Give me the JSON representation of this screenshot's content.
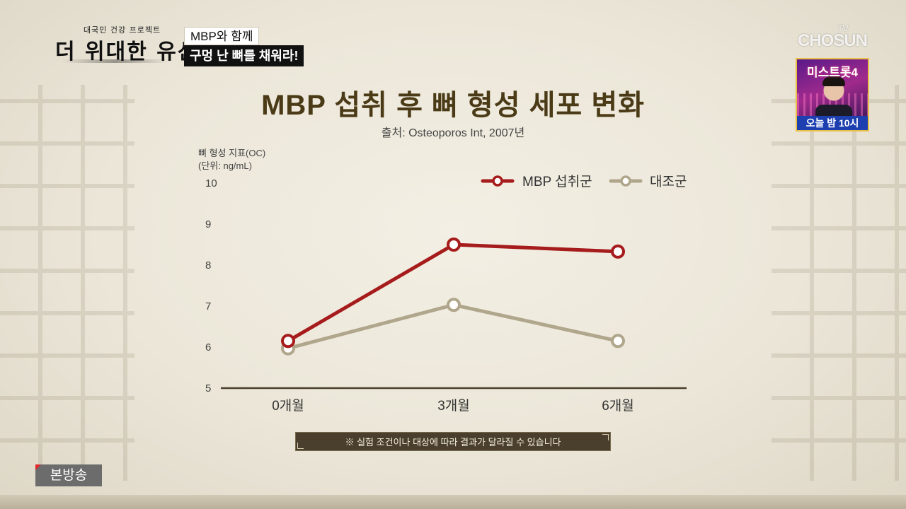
{
  "program": {
    "logo_top": "대국민 건강 프로젝트",
    "logo_main": "더 위대한 유산"
  },
  "caption": {
    "line1": "MBP와 함께",
    "line2": "구멍 난 뼈를 채워라!"
  },
  "network": {
    "tv": "TV",
    "name": "CHOSUN",
    "promo_title": "미스트롯4",
    "promo_time": "오늘 밤 10시"
  },
  "chart_data": {
    "type": "line",
    "title": "MBP 섭취 후 뼈 형성 세포 변화",
    "source": "출처: Osteoporos Int, 2007년",
    "ylabel_line1": "뼈 형성 지표(OC)",
    "ylabel_line2": "(단위: ng/mL)",
    "categories": [
      "0개월",
      "3개월",
      "6개월"
    ],
    "yticks": [
      5,
      6,
      7,
      8,
      9,
      10
    ],
    "ylim": [
      5,
      10
    ],
    "grid": false,
    "legend_position": "top-right",
    "series": [
      {
        "name": "MBP 섭취군",
        "values": [
          6.15,
          8.5,
          8.33
        ],
        "color": "#a61c1c"
      },
      {
        "name": "대조군",
        "values": [
          5.97,
          7.03,
          6.15
        ],
        "color": "#b0a68b"
      }
    ]
  },
  "note": "※ 실험 조건이나 대상에 따라 결과가 달라질 수 있습니다",
  "badge": "본방송",
  "colors": {
    "title": "#4a3a16",
    "axis": "#4a3f2c"
  }
}
